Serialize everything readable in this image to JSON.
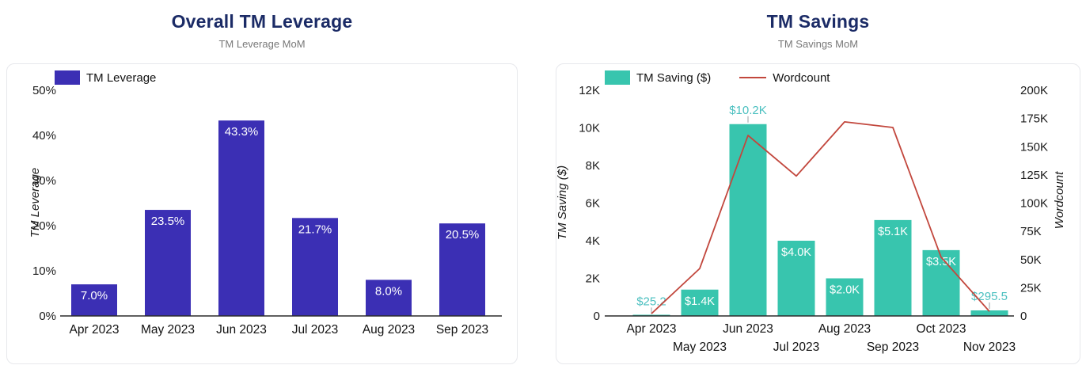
{
  "page": {
    "background": "#ffffff"
  },
  "chart_data": [
    {
      "type": "bar",
      "title": "Overall TM Leverage",
      "subtitle": "TM Leverage MoM",
      "series_name": "TM Leverage",
      "categories": [
        "Apr 2023",
        "May 2023",
        "Jun 2023",
        "Jul 2023",
        "Aug 2023",
        "Sep 2023"
      ],
      "values": [
        7.0,
        23.5,
        43.3,
        21.7,
        8.0,
        20.5
      ],
      "value_labels": [
        "7.0%",
        "23.5%",
        "43.3%",
        "21.7%",
        "8.0%",
        "20.5%"
      ],
      "ylabel": "TM Leverage",
      "yticks": [
        "0%",
        "10%",
        "20%",
        "30%",
        "40%",
        "50%"
      ],
      "ytick_values": [
        0,
        10,
        20,
        30,
        40,
        50
      ],
      "ylim": [
        0,
        50
      ],
      "bar_color": "#3b2fb4",
      "bar_label_color": "#ffffff",
      "axis_text_color": "#1a1a1a",
      "grid": false,
      "legend_position": "top-left"
    },
    {
      "type": "bar+line",
      "title": "TM Savings",
      "subtitle": "TM Savings MoM",
      "categories": [
        "Apr 2023",
        "May 2023",
        "Jun 2023",
        "Jul 2023",
        "Aug 2023",
        "Sep 2023",
        "Oct 2023",
        "Nov 2023"
      ],
      "series": [
        {
          "name": "TM Saving ($)",
          "type": "bar",
          "axis": "left",
          "values": [
            25.2,
            1400,
            10200,
            4000,
            2000,
            5100,
            3500,
            295.5
          ],
          "labels": [
            "$25.2",
            "$1.4K",
            "$10.2K",
            "$4.0K",
            "$2.0K",
            "$5.1K",
            "$3.5K",
            "$295.5"
          ],
          "label_placement": [
            "outside",
            "inside",
            "outside",
            "inside",
            "inside",
            "inside",
            "inside",
            "outside"
          ],
          "color": "#38c5ae"
        },
        {
          "name": "Wordcount",
          "type": "line",
          "axis": "right",
          "values": [
            2000,
            42000,
            160000,
            124000,
            172000,
            167000,
            52000,
            4000
          ],
          "color": "#c2473d"
        }
      ],
      "left_axis": {
        "label": "TM Saving ($)",
        "ticks": [
          "0",
          "2K",
          "4K",
          "6K",
          "8K",
          "10K",
          "12K"
        ],
        "tick_values": [
          0,
          2000,
          4000,
          6000,
          8000,
          10000,
          12000
        ],
        "lim": [
          0,
          12000
        ]
      },
      "right_axis": {
        "label": "Wordcount",
        "ticks": [
          "0",
          "25K",
          "50K",
          "75K",
          "100K",
          "125K",
          "150K",
          "175K",
          "200K"
        ],
        "tick_values": [
          0,
          25000,
          50000,
          75000,
          100000,
          125000,
          150000,
          175000,
          200000
        ],
        "lim": [
          0,
          200000
        ]
      },
      "outside_label_color": "#4cc0c0",
      "bar_label_color": "#ffffff",
      "axis_text_color": "#1a1a1a",
      "grid": false,
      "legend_position": "top-left"
    }
  ],
  "colors": {
    "title_navy": "#1b2b66",
    "subtitle_gray": "#787878",
    "indigo_bar": "#3b2fb4",
    "teal_bar": "#38c5ae",
    "red_line": "#c2473d",
    "teal_label": "#4cc0c0",
    "axis_line": "#2b2b2b",
    "card_border": "#e7e8ec"
  }
}
